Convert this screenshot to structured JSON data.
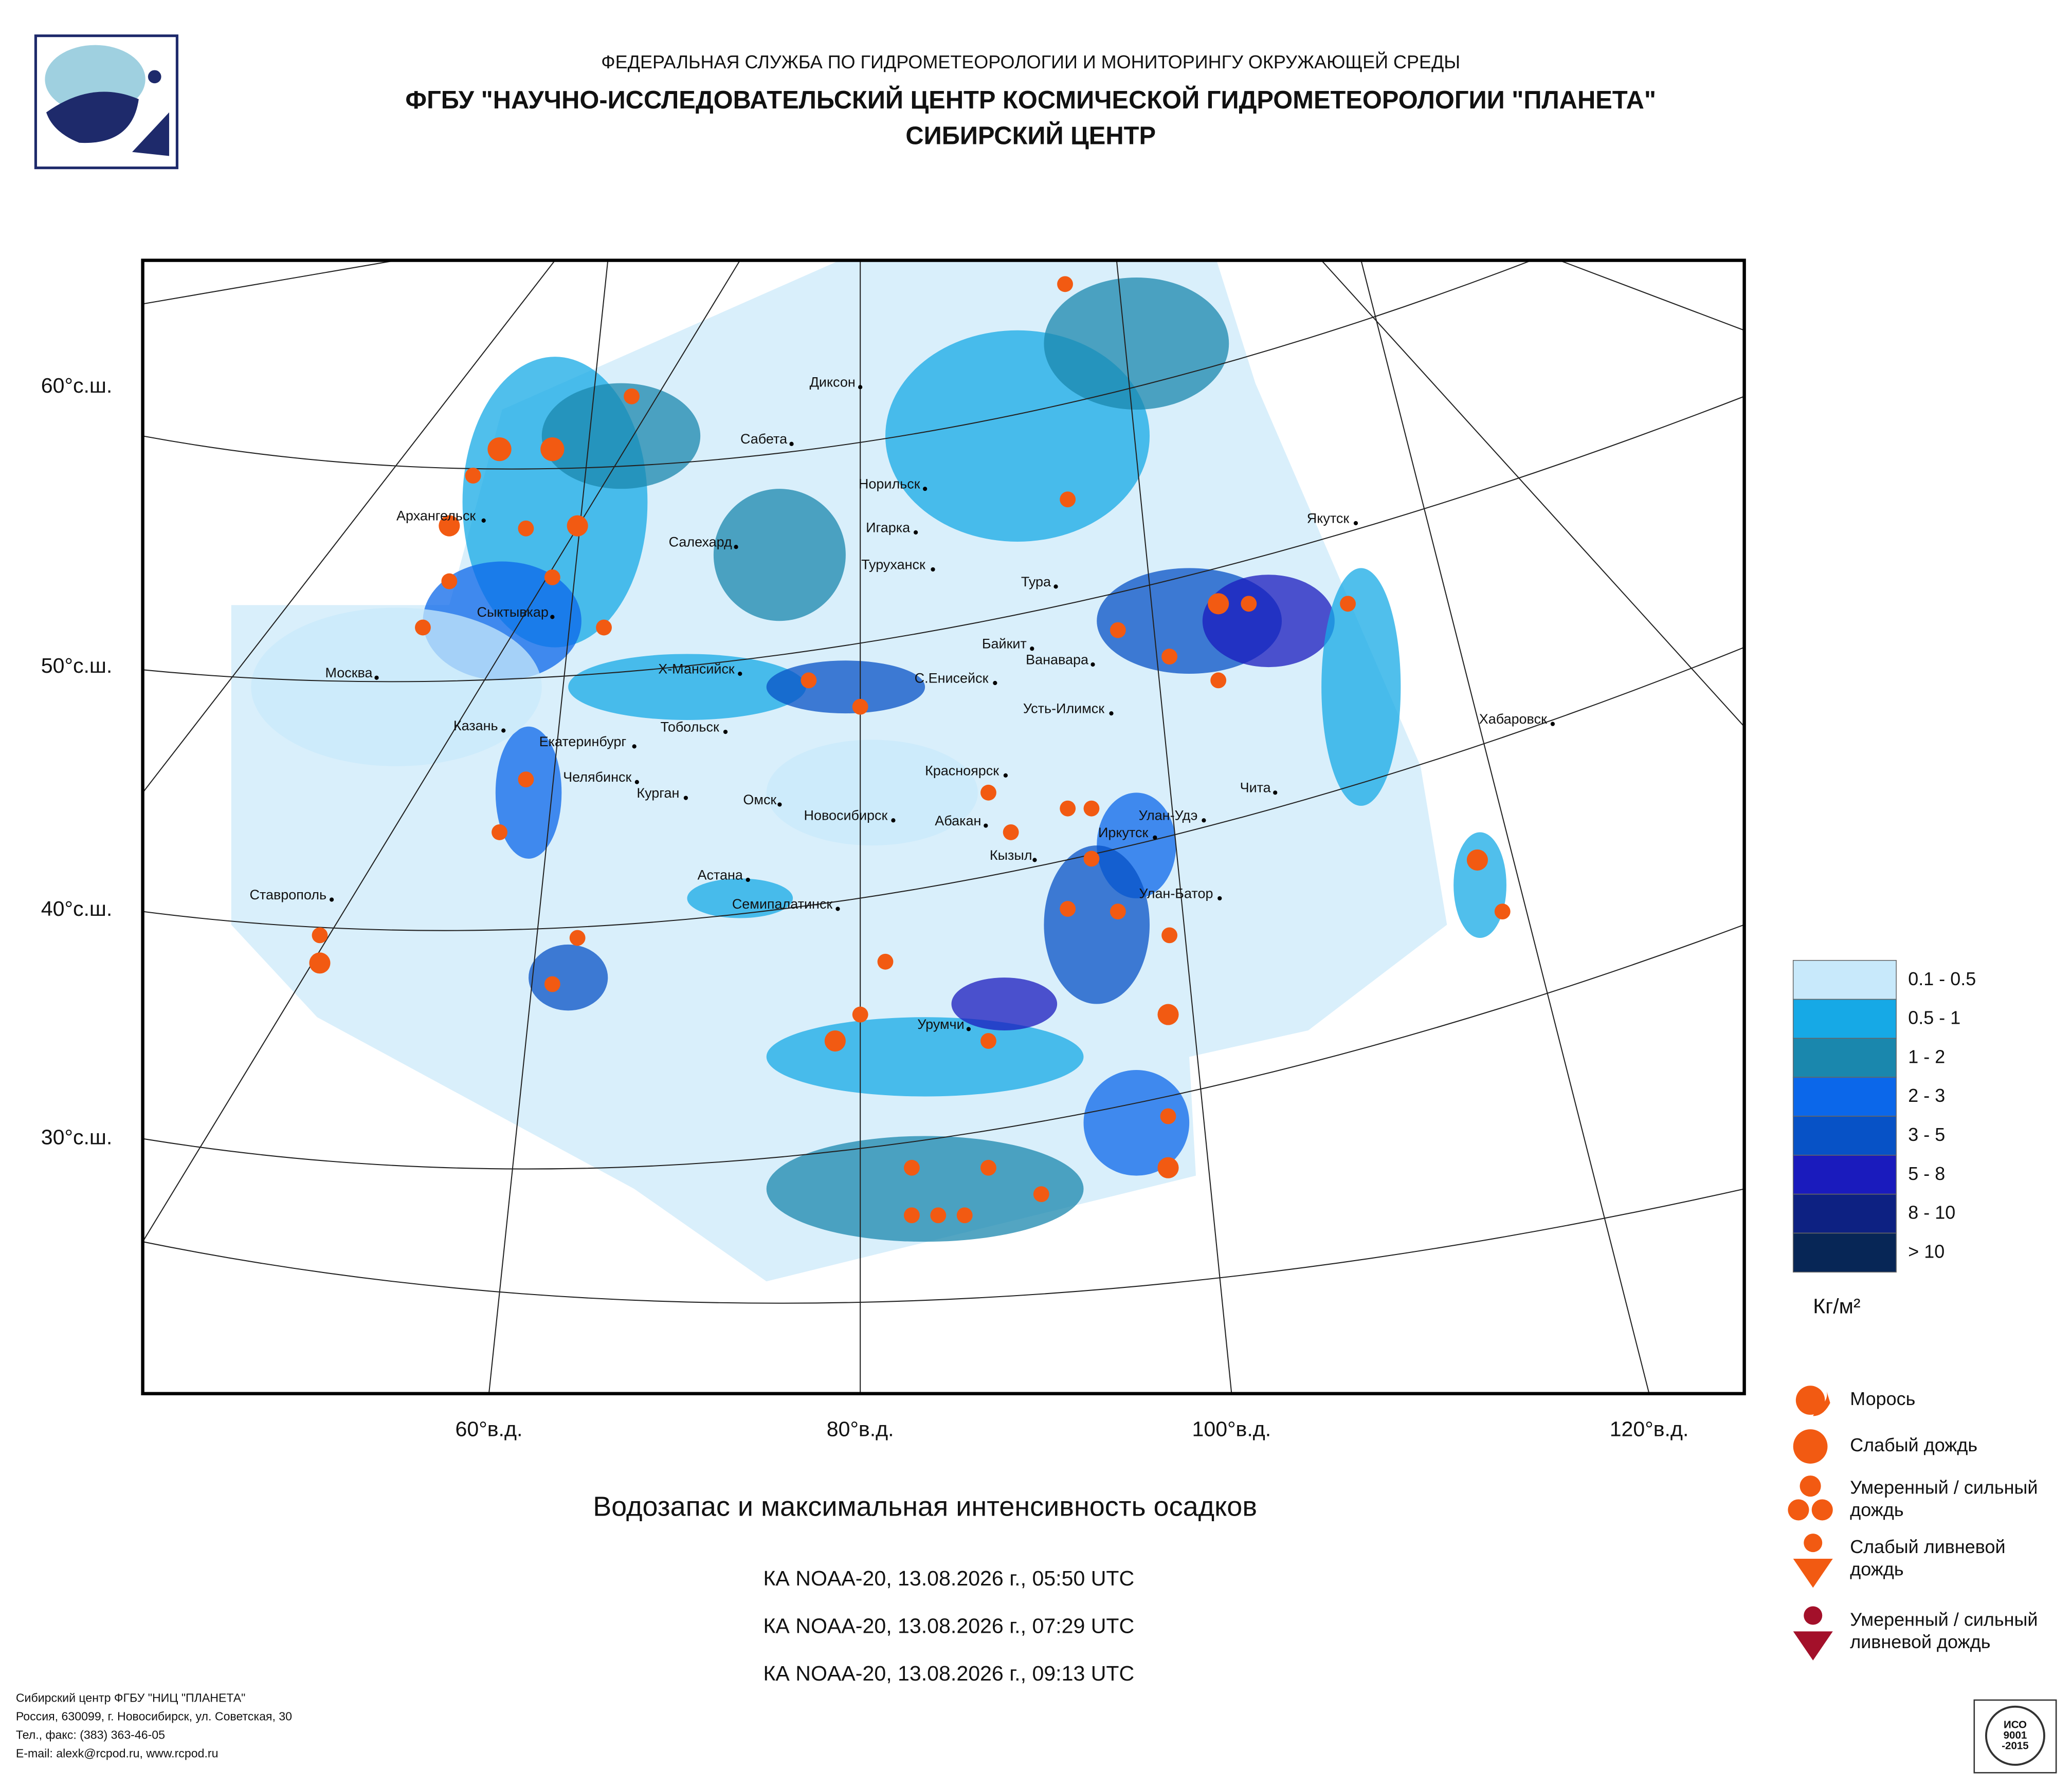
{
  "header": {
    "agency": "ФЕДЕРАЛЬНАЯ СЛУЖБА ПО ГИДРОМЕТЕОРОЛОГИИ И МОНИТОРИНГУ ОКРУЖАЮЩЕЙ СРЕДЫ",
    "institute": "ФГБУ \"НАУЧНО-ИССЛЕДОВАТЕЛЬСКИЙ ЦЕНТР КОСМИЧЕСКОЙ ГИДРОМЕТЕОРОЛОГИИ \"ПЛАНЕТА\"",
    "center": "СИБИРСКИЙ ЦЕНТР"
  },
  "map": {
    "latitude_labels": [
      "60°с.ш.",
      "50°с.ш.",
      "40°с.ш.",
      "30°с.ш."
    ],
    "longitude_labels": [
      "60°в.д.",
      "80°в.д.",
      "100°в.д.",
      "120°в.д."
    ],
    "cities": [
      "Диксон",
      "Сабета",
      "Норильск",
      "Игарка",
      "Туруханск",
      "Салехард",
      "Архангельск",
      "Сыктывкар",
      "Москва",
      "Казань",
      "Екатеринбург",
      "Х-Мансийск",
      "Тобольск",
      "Челябинск",
      "Курган",
      "Омск",
      "Новосибирск",
      "С.Енисейск",
      "Красноярск",
      "Абакан",
      "Кызыл",
      "Тура",
      "Байкит",
      "Ванавара",
      "Усть-Илимск",
      "Иркутск",
      "Улан-Удэ",
      "Чита",
      "Улан-Батор",
      "Якутск",
      "Хабаровск",
      "Астана",
      "Семипалатинск",
      "Ставрополь",
      "Урумчи"
    ]
  },
  "title": "Водозапас и максимальная интенсивность осадков",
  "passes": [
    "КА NOAA-20, 13.08.2026 г., 05:50 UTC",
    "КА NOAA-20, 13.08.2026 г., 07:29 UTC",
    "КА NOAA-20, 13.08.2026 г., 09:13 UTC"
  ],
  "legend": {
    "classes": [
      {
        "label": "0.1 - 0.5",
        "color": "#c8e9fb"
      },
      {
        "label": "0.5 - 1",
        "color": "#16a9e6"
      },
      {
        "label": "1 - 2",
        "color": "#1a87ad"
      },
      {
        "label": "2 - 3",
        "color": "#0b67ea"
      },
      {
        "label": "3 - 5",
        "color": "#0752c6"
      },
      {
        "label": "5 - 8",
        "color": "#1a1bbd"
      },
      {
        "label": "8 - 10",
        "color": "#0d2182"
      },
      {
        "label": "> 10",
        "color": "#072656"
      }
    ],
    "unit": "Кг/м²",
    "symbols": [
      {
        "lines": [
          "Морось"
        ]
      },
      {
        "lines": [
          "Слабый дождь"
        ]
      },
      {
        "lines": [
          "Умеренный / сильный",
          "дождь"
        ]
      },
      {
        "lines": [
          "Слабый ливневой",
          "дождь"
        ]
      },
      {
        "lines": [
          "Умеренный / сильный",
          "ливневой дождь"
        ]
      }
    ]
  },
  "footer": [
    "Сибирский центр ФГБУ \"НИЦ \"ПЛАНЕТА\"",
    "Россия, 630099, г. Новосибирск, ул. Советская, 30",
    "Тел., факс: (383) 363-46-05",
    "E-mail: alexk@rcpod.ru, www.rcpod.ru"
  ],
  "iso": [
    "ИСО",
    "9001",
    "-2015"
  ]
}
